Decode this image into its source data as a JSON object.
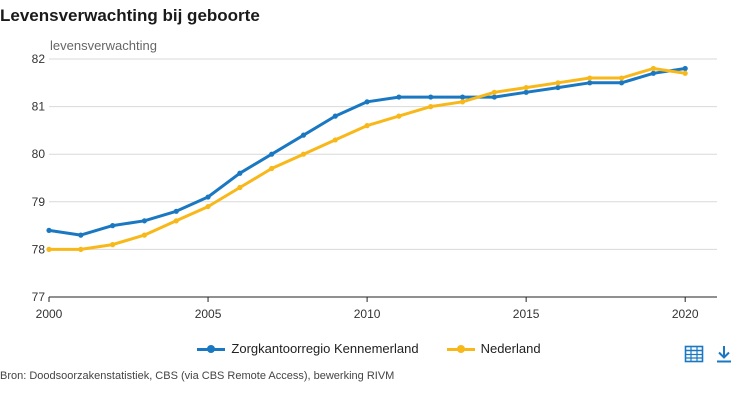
{
  "colors": {
    "kennemerland": "#1a78c2",
    "nederland": "#f8b81a",
    "grid": "#d9d9d9",
    "axis": "#222222",
    "icon": "#1a78c2"
  },
  "toolbar": {
    "table_icon": "table-icon",
    "download_icon": "download-icon"
  },
  "source": "Bron: Doodsoorzakenstatistiek, CBS (via CBS Remote Access), bewerking RIVM",
  "chart_data": {
    "type": "line",
    "title": "Levensverwachting bij geboorte",
    "ylabel": "levensverwachting",
    "xlabel": "",
    "x": [
      2000,
      2001,
      2002,
      2003,
      2004,
      2005,
      2006,
      2007,
      2008,
      2009,
      2010,
      2011,
      2012,
      2013,
      2014,
      2015,
      2016,
      2017,
      2018,
      2019,
      2020
    ],
    "series": [
      {
        "name": "Zorgkantoorregio Kennemerland",
        "values": [
          78.4,
          78.3,
          78.5,
          78.6,
          78.8,
          79.1,
          79.6,
          80.0,
          80.4,
          80.8,
          81.1,
          81.2,
          81.2,
          81.2,
          81.2,
          81.3,
          81.4,
          81.5,
          81.5,
          81.7,
          81.8
        ]
      },
      {
        "name": "Nederland",
        "values": [
          78.0,
          78.0,
          78.1,
          78.3,
          78.6,
          78.9,
          79.3,
          79.7,
          80.0,
          80.3,
          80.6,
          80.8,
          81.0,
          81.1,
          81.3,
          81.4,
          81.5,
          81.6,
          81.6,
          81.8,
          81.7
        ]
      }
    ],
    "ylim": [
      77,
      82
    ],
    "yticks": [
      77,
      78,
      79,
      80,
      81,
      82
    ],
    "xlim": [
      2000,
      2021
    ],
    "xticks": [
      2000,
      2005,
      2010,
      2015,
      2020
    ],
    "grid": true,
    "legend": "bottom"
  }
}
